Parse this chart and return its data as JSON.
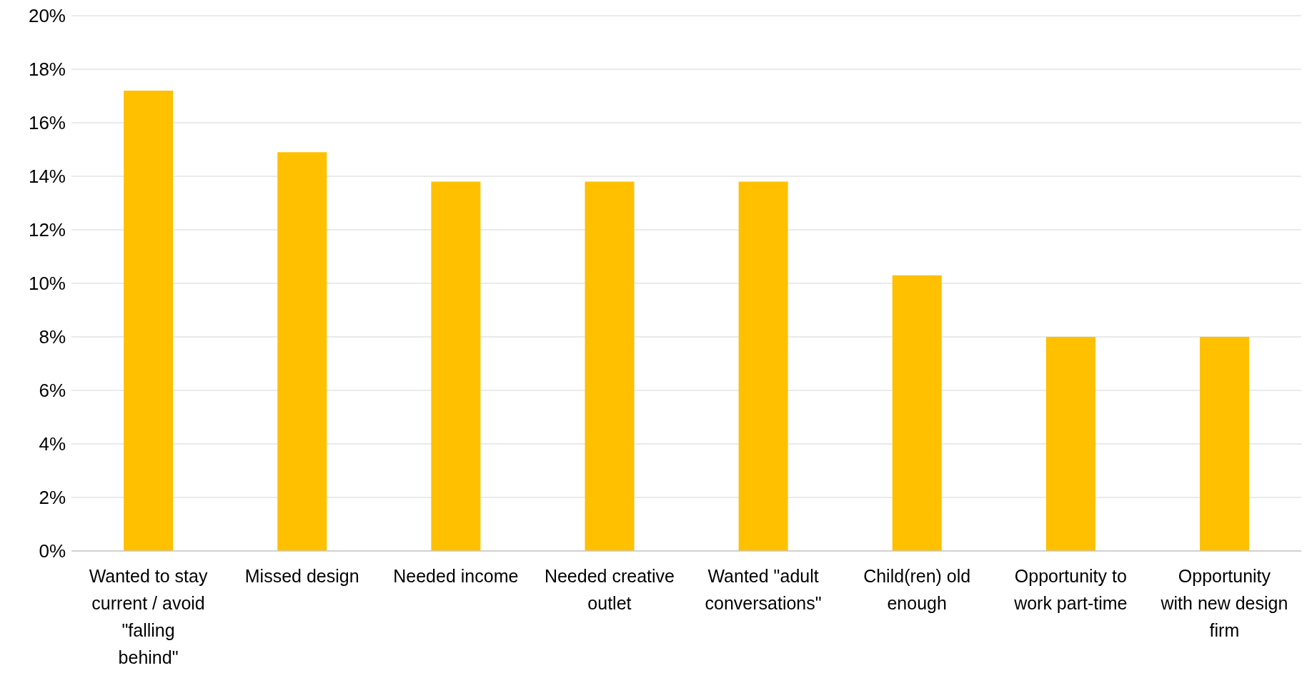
{
  "chart_data": {
    "type": "bar",
    "categories": [
      "Wanted to stay current / avoid \"falling behind\"",
      "Missed design",
      "Needed income",
      "Needed creative outlet",
      "Wanted \"adult conversations\"",
      "Child(ren) old enough",
      "Opportunity to work part-time",
      "Opportunity with new design firm"
    ],
    "values": [
      17.2,
      14.9,
      13.8,
      13.8,
      13.8,
      10.3,
      8.0,
      8.0
    ],
    "color": "#ffc000",
    "ylim": [
      0,
      20
    ],
    "yticks": [
      {
        "value": 0,
        "label": "0%"
      },
      {
        "value": 2,
        "label": "2%"
      },
      {
        "value": 4,
        "label": "4%"
      },
      {
        "value": 6,
        "label": "6%"
      },
      {
        "value": 8,
        "label": "8%"
      },
      {
        "value": 10,
        "label": "10%"
      },
      {
        "value": 12,
        "label": "12%"
      },
      {
        "value": 14,
        "label": "14%"
      },
      {
        "value": 16,
        "label": "16%"
      },
      {
        "value": 18,
        "label": "18%"
      },
      {
        "value": 20,
        "label": "20%"
      }
    ],
    "grid": "y"
  }
}
